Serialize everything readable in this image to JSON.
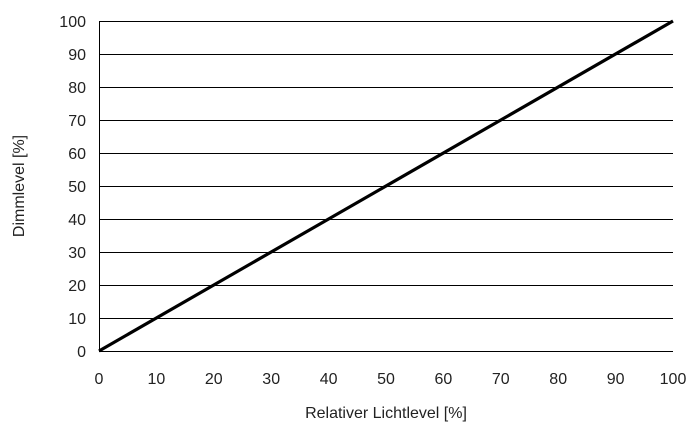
{
  "chart_data": {
    "type": "line",
    "xlabel": "Relativer Lichtlevel [%]",
    "ylabel": "Dimmlevel [%]",
    "xlim": [
      0,
      100
    ],
    "ylim": [
      0,
      100
    ],
    "x_ticks": [
      0,
      10,
      20,
      30,
      40,
      50,
      60,
      70,
      80,
      90,
      100
    ],
    "y_ticks": [
      0,
      10,
      20,
      30,
      40,
      50,
      60,
      70,
      80,
      90,
      100
    ],
    "grid": "horizontal",
    "line_color": "#000000",
    "series": [
      {
        "x": [
          0,
          100
        ],
        "y": [
          0,
          100
        ]
      }
    ]
  }
}
